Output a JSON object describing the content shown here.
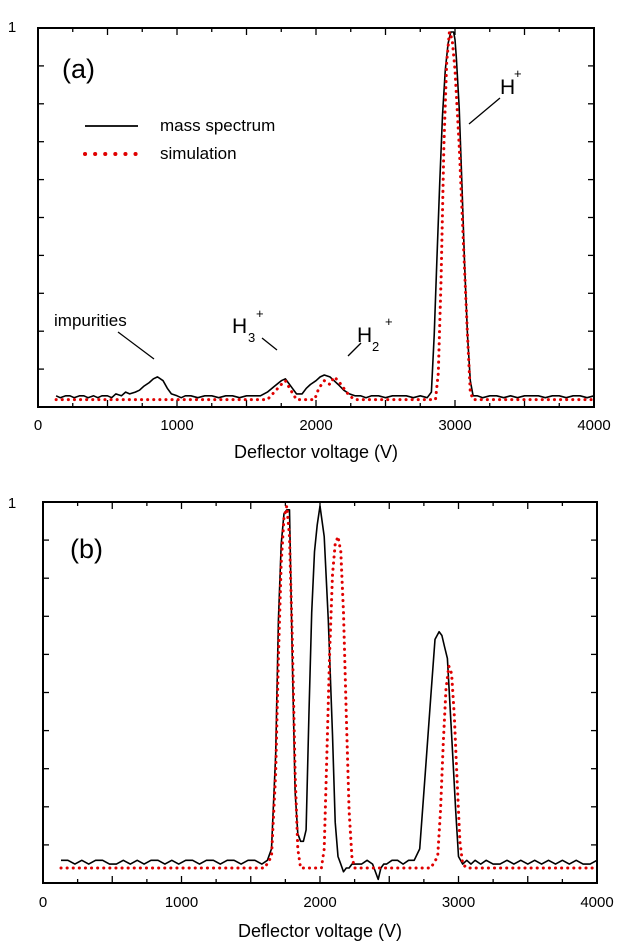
{
  "chart_data": [
    {
      "type": "line",
      "panel_label": "(a)",
      "xlabel": "Deflector voltage (V)",
      "ylabel": "",
      "xlim": [
        0,
        4000
      ],
      "ylim": [
        0,
        1
      ],
      "x_ticks": [
        "0",
        "1000",
        "2000",
        "3000",
        "4000"
      ],
      "y_tick_label": "1",
      "legend": {
        "placement": "upper-left",
        "entries": [
          {
            "label": "mass spectrum",
            "style": "solid",
            "color": "#000000"
          },
          {
            "label": "simulation",
            "style": "dotted",
            "color": "#e00000"
          }
        ]
      },
      "annotations": [
        {
          "text": "impurities",
          "x": 850,
          "y": 0.11
        },
        {
          "text": "H",
          "sub": "3",
          "sup": "+",
          "x": 1790,
          "y": 0.09
        },
        {
          "text": "H",
          "sub": "2",
          "sup": "+",
          "x": 2130,
          "y": 0.12
        },
        {
          "text": "H",
          "sup": "+",
          "x": 3000,
          "y": 0.92
        }
      ],
      "series": [
        {
          "name": "mass spectrum",
          "color": "#000000",
          "style": "solid",
          "x": [
            130,
            160,
            200,
            230,
            260,
            300,
            330,
            360,
            400,
            430,
            460,
            500,
            530,
            560,
            600,
            630,
            660,
            700,
            730,
            760,
            800,
            830,
            860,
            900,
            930,
            960,
            1000,
            1030,
            1060,
            1100,
            1150,
            1200,
            1250,
            1300,
            1350,
            1400,
            1450,
            1500,
            1550,
            1600,
            1650,
            1700,
            1750,
            1780,
            1800,
            1830,
            1860,
            1900,
            1930,
            1960,
            2000,
            2030,
            2060,
            2100,
            2130,
            2160,
            2200,
            2240,
            2280,
            2320,
            2360,
            2400,
            2450,
            2500,
            2550,
            2600,
            2650,
            2700,
            2750,
            2800,
            2830,
            2850,
            2870,
            2890,
            2910,
            2930,
            2950,
            2970,
            2990,
            3000,
            3010,
            3030,
            3050,
            3070,
            3090,
            3110,
            3130,
            3160,
            3200,
            3250,
            3300,
            3350,
            3400,
            3450,
            3500,
            3550,
            3600,
            3650,
            3700,
            3750,
            3800,
            3850,
            3900,
            3950,
            4000
          ],
          "y": [
            0.04,
            0.035,
            0.04,
            0.04,
            0.035,
            0.04,
            0.04,
            0.035,
            0.04,
            0.035,
            0.04,
            0.04,
            0.035,
            0.045,
            0.04,
            0.05,
            0.045,
            0.05,
            0.055,
            0.065,
            0.075,
            0.085,
            0.09,
            0.08,
            0.06,
            0.045,
            0.04,
            0.035,
            0.04,
            0.04,
            0.035,
            0.04,
            0.04,
            0.035,
            0.04,
            0.04,
            0.035,
            0.04,
            0.04,
            0.04,
            0.05,
            0.065,
            0.08,
            0.085,
            0.075,
            0.06,
            0.045,
            0.045,
            0.06,
            0.07,
            0.08,
            0.09,
            0.095,
            0.09,
            0.08,
            0.07,
            0.055,
            0.045,
            0.04,
            0.04,
            0.035,
            0.04,
            0.04,
            0.035,
            0.04,
            0.04,
            0.04,
            0.035,
            0.04,
            0.035,
            0.05,
            0.2,
            0.4,
            0.6,
            0.78,
            0.9,
            0.97,
            1.0,
            1.0,
            0.98,
            0.93,
            0.8,
            0.6,
            0.38,
            0.2,
            0.08,
            0.04,
            0.04,
            0.035,
            0.04,
            0.04,
            0.035,
            0.04,
            0.035,
            0.04,
            0.04,
            0.04,
            0.035,
            0.04,
            0.04,
            0.035,
            0.04,
            0.04,
            0.035,
            0.04
          ]
        },
        {
          "name": "simulation",
          "color": "#e00000",
          "style": "dotted",
          "x": [
            130,
            400,
            700,
            750,
            800,
            850,
            900,
            950,
            1000,
            1300,
            1650,
            1700,
            1750,
            1780,
            1810,
            1860,
            1900,
            1990,
            2020,
            2060,
            2100,
            2130,
            2160,
            2200,
            2240,
            2280,
            2400,
            2800,
            2860,
            2880,
            2900,
            2920,
            2940,
            2960,
            2980,
            3000,
            3030,
            3060,
            3090,
            3110,
            3130,
            3300,
            4000
          ],
          "y": [
            0.03,
            0.03,
            0.03,
            0.03,
            0.03,
            0.03,
            0.03,
            0.03,
            0.03,
            0.03,
            0.03,
            0.05,
            0.07,
            0.08,
            0.06,
            0.03,
            0.03,
            0.03,
            0.06,
            0.08,
            0.07,
            0.09,
            0.08,
            0.06,
            0.04,
            0.03,
            0.03,
            0.03,
            0.03,
            0.1,
            0.35,
            0.7,
            0.92,
            1.0,
            0.98,
            0.9,
            0.7,
            0.45,
            0.2,
            0.05,
            0.03,
            0.03,
            0.03
          ]
        }
      ]
    },
    {
      "type": "line",
      "panel_label": "(b)",
      "xlabel": "Deflector voltage (V)",
      "ylabel": "",
      "xlim": [
        0,
        4000
      ],
      "ylim": [
        0,
        1
      ],
      "x_ticks": [
        "0",
        "1000",
        "2000",
        "3000",
        "4000"
      ],
      "y_tick_label": "1",
      "series": [
        {
          "name": "mass spectrum",
          "color": "#000000",
          "style": "solid",
          "x": [
            130,
            180,
            230,
            280,
            330,
            380,
            430,
            480,
            530,
            580,
            630,
            680,
            730,
            780,
            830,
            880,
            930,
            980,
            1030,
            1080,
            1130,
            1180,
            1230,
            1280,
            1330,
            1380,
            1430,
            1480,
            1530,
            1580,
            1620,
            1650,
            1680,
            1700,
            1720,
            1740,
            1760,
            1780,
            1800,
            1820,
            1840,
            1860,
            1880,
            1900,
            1920,
            1940,
            1960,
            1980,
            2000,
            2030,
            2060,
            2090,
            2110,
            2130,
            2150,
            2170,
            2190,
            2210,
            2230,
            2260,
            2300,
            2340,
            2380,
            2420,
            2440,
            2460,
            2480,
            2520,
            2560,
            2600,
            2640,
            2680,
            2720,
            2760,
            2800,
            2830,
            2860,
            2880,
            2900,
            2920,
            2950,
            2980,
            3000,
            3030,
            3060,
            3090,
            3120,
            3160,
            3200,
            3250,
            3300,
            3350,
            3400,
            3450,
            3500,
            3550,
            3600,
            3650,
            3700,
            3750,
            3800,
            3850,
            3900,
            3950,
            4000
          ],
          "y": [
            0.07,
            0.07,
            0.06,
            0.07,
            0.06,
            0.07,
            0.07,
            0.06,
            0.06,
            0.07,
            0.06,
            0.07,
            0.06,
            0.07,
            0.07,
            0.06,
            0.07,
            0.06,
            0.07,
            0.07,
            0.06,
            0.07,
            0.07,
            0.06,
            0.07,
            0.07,
            0.06,
            0.07,
            0.07,
            0.06,
            0.07,
            0.1,
            0.35,
            0.7,
            0.9,
            0.98,
            0.99,
            0.99,
            0.6,
            0.25,
            0.14,
            0.12,
            0.12,
            0.15,
            0.45,
            0.72,
            0.88,
            0.95,
            1.0,
            0.92,
            0.7,
            0.4,
            0.17,
            0.08,
            0.06,
            0.04,
            0.05,
            0.05,
            0.06,
            0.06,
            0.06,
            0.07,
            0.06,
            0.02,
            0.05,
            0.06,
            0.06,
            0.07,
            0.07,
            0.06,
            0.07,
            0.07,
            0.1,
            0.3,
            0.5,
            0.65,
            0.67,
            0.66,
            0.63,
            0.6,
            0.4,
            0.2,
            0.08,
            0.06,
            0.07,
            0.06,
            0.07,
            0.06,
            0.07,
            0.06,
            0.06,
            0.07,
            0.06,
            0.07,
            0.06,
            0.07,
            0.06,
            0.07,
            0.06,
            0.07,
            0.06,
            0.07,
            0.06,
            0.06,
            0.07
          ]
        },
        {
          "name": "simulation",
          "color": "#e00000",
          "style": "dotted",
          "x": [
            130,
            400,
            800,
            1200,
            1600,
            1650,
            1680,
            1700,
            1720,
            1740,
            1760,
            1780,
            1800,
            1820,
            1840,
            1860,
            1920,
            2010,
            2030,
            2050,
            2070,
            2090,
            2110,
            2130,
            2150,
            2170,
            2190,
            2210,
            2230,
            2250,
            2300,
            2800,
            2850,
            2870,
            2890,
            2910,
            2930,
            2950,
            2970,
            2990,
            3010,
            3030,
            3060,
            3200,
            4000
          ],
          "y": [
            0.05,
            0.05,
            0.05,
            0.05,
            0.05,
            0.08,
            0.3,
            0.6,
            0.85,
            0.97,
            1.0,
            0.92,
            0.65,
            0.3,
            0.1,
            0.05,
            0.05,
            0.05,
            0.1,
            0.35,
            0.62,
            0.82,
            0.9,
            0.92,
            0.88,
            0.72,
            0.45,
            0.2,
            0.08,
            0.05,
            0.05,
            0.05,
            0.08,
            0.2,
            0.38,
            0.52,
            0.58,
            0.56,
            0.45,
            0.28,
            0.12,
            0.06,
            0.05,
            0.05,
            0.05
          ]
        }
      ]
    }
  ]
}
